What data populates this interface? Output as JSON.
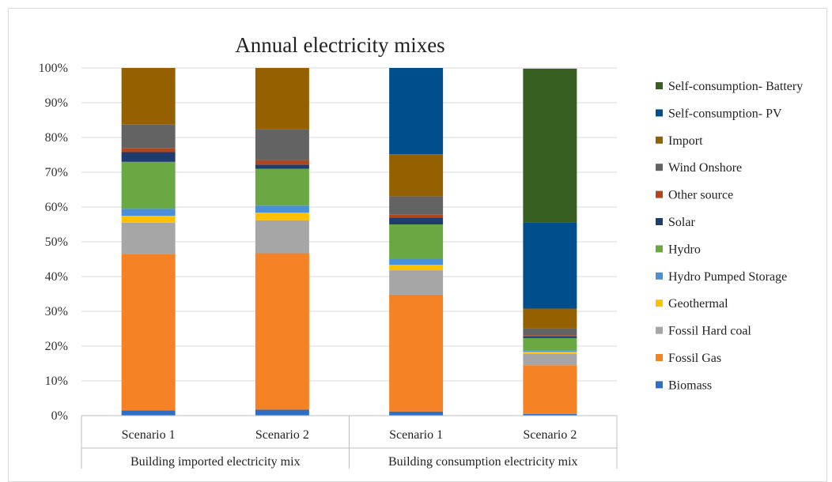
{
  "chart_data": {
    "type": "bar",
    "stacked": "percent",
    "title": "Annual electricity mixes",
    "ylim": [
      0,
      100
    ],
    "y_ticks": [
      "0%",
      "10%",
      "20%",
      "30%",
      "40%",
      "50%",
      "60%",
      "70%",
      "80%",
      "90%",
      "100%"
    ],
    "grid": true,
    "legend_position": "right",
    "groups": [
      {
        "label": "Building imported electricity mix",
        "categories": [
          "Scenario 1",
          "Scenario 2"
        ]
      },
      {
        "label": "Building consumption electricity mix",
        "categories": [
          "Scenario 1",
          "Scenario 2"
        ]
      }
    ],
    "categories": [
      "Scenario 1",
      "Scenario 2",
      "Scenario 1",
      "Scenario 2"
    ],
    "series": [
      {
        "name": "Biomass",
        "color": "#2e6fc4",
        "values": [
          1.5,
          1.7,
          1.2,
          0.5
        ]
      },
      {
        "name": "Fossil Gas",
        "color": "#f58225",
        "values": [
          45.0,
          45.0,
          33.6,
          14.0
        ]
      },
      {
        "name": "Fossil Hard coal",
        "color": "#a6a6a6",
        "values": [
          9.0,
          9.5,
          7.0,
          3.3
        ]
      },
      {
        "name": "Geothermal",
        "color": "#ffc000",
        "values": [
          2.0,
          2.2,
          1.6,
          0.6
        ]
      },
      {
        "name": "Hydro Pumped Storage",
        "color": "#4a90d9",
        "values": [
          2.0,
          2.0,
          1.6,
          0.4
        ]
      },
      {
        "name": "Hydro",
        "color": "#6aa843",
        "values": [
          13.5,
          10.6,
          10.0,
          3.5
        ]
      },
      {
        "name": "Solar",
        "color": "#1f3c6e",
        "values": [
          2.8,
          1.2,
          2.0,
          0.5
        ]
      },
      {
        "name": "Other source",
        "color": "#b1461c",
        "values": [
          1.2,
          1.3,
          0.9,
          0.3
        ]
      },
      {
        "name": "Wind Onshore",
        "color": "#636363",
        "values": [
          6.8,
          8.8,
          5.2,
          2.1
        ]
      },
      {
        "name": "Import",
        "color": "#956000",
        "values": [
          16.2,
          17.7,
          12.1,
          5.6
        ]
      },
      {
        "name": "Self-consumption- PV",
        "color": "#004f8c",
        "values": [
          0,
          0,
          24.8,
          24.8
        ]
      },
      {
        "name": "Self-consumption- Battery",
        "color": "#375f22",
        "values": [
          0,
          0,
          0,
          44.2
        ]
      }
    ]
  }
}
